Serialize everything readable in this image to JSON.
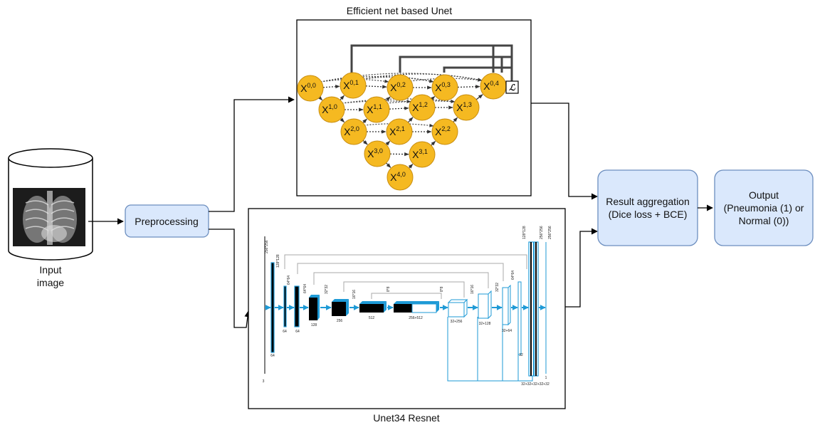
{
  "title_top": "Efficient net based Unet",
  "title_bottom": "Unet34 Resnet",
  "input": {
    "line1": "Input",
    "line2": "image"
  },
  "preprocessing": "Preprocessing",
  "aggregation": {
    "line1": "Result aggregation",
    "line2": "(Dice loss + BCE)"
  },
  "output": {
    "line1": "Output",
    "line2": "(Pneumonia (1) or",
    "line3": "Normal (0))"
  },
  "loss_symbol": "ℒ",
  "colors": {
    "box_fill": "#dae8fc",
    "box_stroke": "#6c8ebf",
    "node_fill": "#f5b921",
    "node_stroke": "#c98e10",
    "unet34_blue": "#1e9ad6"
  },
  "nodes": [
    {
      "id": "x00",
      "base": "X",
      "sup": "0,0"
    },
    {
      "id": "x01",
      "base": "X",
      "sup": "0,1"
    },
    {
      "id": "x02",
      "base": "X",
      "sup": "0,2"
    },
    {
      "id": "x03",
      "base": "X",
      "sup": "0,3"
    },
    {
      "id": "x04",
      "base": "X",
      "sup": "0,4"
    },
    {
      "id": "x10",
      "base": "X",
      "sup": "1,0"
    },
    {
      "id": "x11",
      "base": "X",
      "sup": "1,1"
    },
    {
      "id": "x12",
      "base": "X",
      "sup": "1,2"
    },
    {
      "id": "x13",
      "base": "X",
      "sup": "1,3"
    },
    {
      "id": "x20",
      "base": "X",
      "sup": "2,0"
    },
    {
      "id": "x21",
      "base": "X",
      "sup": "2,1"
    },
    {
      "id": "x22",
      "base": "X",
      "sup": "2,2"
    },
    {
      "id": "x30",
      "base": "X",
      "sup": "3,0"
    },
    {
      "id": "x31",
      "base": "X",
      "sup": "3,1"
    },
    {
      "id": "x40",
      "base": "X",
      "sup": "4,0"
    }
  ],
  "unet34_labels": {
    "left_small": [
      "256*256",
      "128*128",
      "64*64",
      "64*64",
      "32*32",
      "16*16",
      "8*8"
    ],
    "right_small": [
      "8*8",
      "16*16",
      "32*32",
      "64*64",
      "128*128",
      "256*256",
      "256*256"
    ],
    "bottom": [
      "3",
      "64",
      "64",
      "64",
      "128",
      "256",
      "512",
      "256+512",
      "32+256",
      "32+128",
      "32+64",
      "32",
      "32+32+32+32+32",
      "1"
    ]
  }
}
